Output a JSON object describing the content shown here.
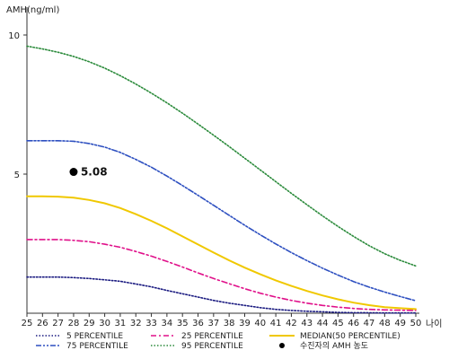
{
  "chart_data": {
    "type": "line",
    "ylabel": "AMH(ng/ml)",
    "xlabel": "나이",
    "xlim": [
      25,
      50
    ],
    "ylim": [
      0,
      11
    ],
    "x_ticks": [
      25,
      26,
      27,
      28,
      29,
      30,
      31,
      32,
      33,
      34,
      35,
      36,
      37,
      38,
      39,
      40,
      41,
      42,
      43,
      44,
      45,
      46,
      47,
      48,
      49,
      50
    ],
    "y_ticks": [
      5,
      10
    ],
    "x": [
      25,
      26,
      27,
      28,
      29,
      30,
      31,
      32,
      33,
      34,
      35,
      36,
      37,
      38,
      39,
      40,
      41,
      42,
      43,
      44,
      45,
      46,
      47,
      48,
      49,
      50
    ],
    "series": [
      {
        "name": "5 PERCENTILE",
        "color": "#1a1a80",
        "dash": "dotted",
        "values": [
          1.3,
          1.3,
          1.3,
          1.28,
          1.25,
          1.2,
          1.15,
          1.05,
          0.95,
          0.82,
          0.7,
          0.58,
          0.46,
          0.36,
          0.28,
          0.2,
          0.14,
          0.1,
          0.07,
          0.05,
          0.03,
          0.02,
          0.015,
          0.01,
          0.01,
          0.01
        ]
      },
      {
        "name": "25 PERCENTILE",
        "color": "#e0108a",
        "dash": "dashdot",
        "values": [
          2.65,
          2.65,
          2.65,
          2.62,
          2.57,
          2.48,
          2.37,
          2.22,
          2.05,
          1.86,
          1.66,
          1.45,
          1.25,
          1.06,
          0.88,
          0.72,
          0.58,
          0.46,
          0.36,
          0.28,
          0.22,
          0.17,
          0.14,
          0.12,
          0.11,
          0.1
        ]
      },
      {
        "name": "MEDIAN(50 PERCENTILE)",
        "color": "#f0c800",
        "dash": "solid",
        "values": [
          4.2,
          4.2,
          4.19,
          4.15,
          4.07,
          3.95,
          3.78,
          3.56,
          3.32,
          3.05,
          2.76,
          2.47,
          2.18,
          1.9,
          1.64,
          1.4,
          1.18,
          0.98,
          0.8,
          0.64,
          0.5,
          0.38,
          0.29,
          0.22,
          0.18,
          0.15
        ]
      },
      {
        "name": "75 PERCENTILE",
        "color": "#2d4fc0",
        "dash": "dashdotdot",
        "values": [
          6.2,
          6.2,
          6.2,
          6.18,
          6.1,
          5.97,
          5.78,
          5.53,
          5.25,
          4.93,
          4.59,
          4.24,
          3.88,
          3.52,
          3.16,
          2.82,
          2.49,
          2.18,
          1.89,
          1.62,
          1.37,
          1.14,
          0.94,
          0.76,
          0.6,
          0.45
        ]
      },
      {
        "name": "95 PERCENTILE",
        "color": "#2a8a3a",
        "dash": "dotted",
        "values": [
          9.6,
          9.5,
          9.38,
          9.23,
          9.04,
          8.81,
          8.54,
          8.24,
          7.91,
          7.56,
          7.19,
          6.8,
          6.4,
          5.99,
          5.57,
          5.15,
          4.73,
          4.31,
          3.9,
          3.5,
          3.12,
          2.76,
          2.43,
          2.14,
          1.9,
          1.7
        ]
      }
    ],
    "marker": {
      "name": "수진자의 AMH 농도",
      "x": 28,
      "y": 5.08,
      "label": "5.08",
      "color": "#000000"
    },
    "legend_position": "bottom",
    "grid": false
  }
}
